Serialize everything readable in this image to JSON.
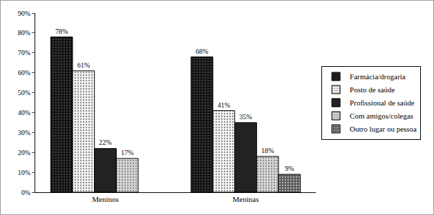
{
  "chart_data": {
    "type": "bar",
    "categories": [
      "Meninos",
      "Meninas"
    ],
    "series": [
      {
        "name": "Farmácia/drogaria",
        "color": "#111111",
        "values": [
          78,
          68
        ],
        "value_labels": [
          "78%",
          "68%"
        ]
      },
      {
        "name": "Posto de saúde",
        "color": "#f4f4f4",
        "values": [
          61,
          41
        ],
        "value_labels": [
          "61%",
          "41%"
        ]
      },
      {
        "name": "Profissional de saúde",
        "color": "#222222",
        "values": [
          22,
          35
        ],
        "value_labels": [
          "22%",
          "35%"
        ]
      },
      {
        "name": "Com amigos/colegas",
        "color": "#d6d6d6",
        "values": [
          17,
          18
        ],
        "value_labels": [
          "17%",
          "18%"
        ]
      },
      {
        "name": "Outro lugar ou pessoa",
        "color": "#5a5a5a",
        "values": [
          null,
          9
        ],
        "value_labels": [
          null,
          "9%"
        ]
      }
    ],
    "ylim": [
      0,
      90
    ],
    "yticks": [
      {
        "value": 0,
        "label": "0%"
      },
      {
        "value": 10,
        "label": "10%"
      },
      {
        "value": 20,
        "label": "20%"
      },
      {
        "value": 30,
        "label": "30%"
      },
      {
        "value": 40,
        "label": "40%"
      },
      {
        "value": 50,
        "label": "50%"
      },
      {
        "value": 60,
        "label": "60%"
      },
      {
        "value": 70,
        "label": "70%"
      },
      {
        "value": 80,
        "label": "80%"
      },
      {
        "value": 90,
        "label": "90%"
      }
    ],
    "grid": false,
    "legend": "right",
    "data_labels": true
  }
}
